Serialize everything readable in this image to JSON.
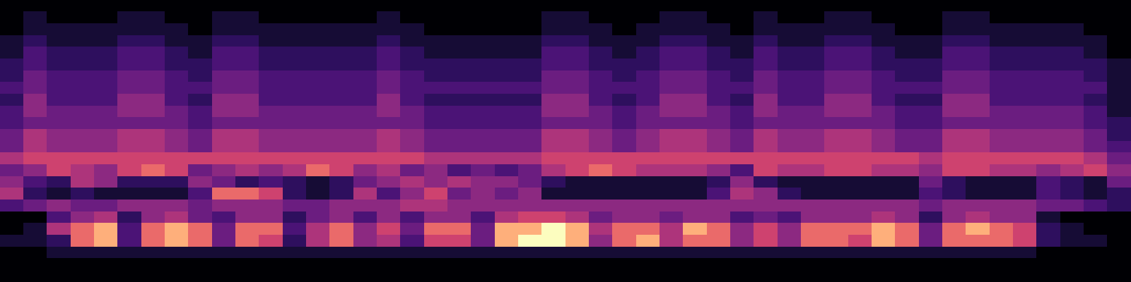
{
  "chart_data": {
    "type": "heatmap",
    "tick_labels": false,
    "cells": [
      [
        0,
        0,
        0,
        0,
        0,
        0,
        0,
        0,
        0,
        0,
        0,
        0,
        0,
        0,
        0,
        0,
        0,
        0,
        0,
        0,
        0,
        0,
        0,
        0,
        0,
        0,
        0,
        0,
        0,
        0,
        0,
        0,
        0,
        0,
        0,
        0,
        0,
        0,
        0,
        0,
        0,
        0,
        0,
        0,
        0,
        0,
        0,
        0
      ],
      [
        0,
        1,
        0,
        0,
        0,
        1,
        1,
        0,
        0,
        1,
        1,
        0,
        0,
        0,
        0,
        0,
        1,
        0,
        0,
        0,
        0,
        0,
        0,
        1,
        1,
        0,
        0,
        0,
        1,
        1,
        0,
        0,
        1,
        0,
        0,
        1,
        1,
        0,
        0,
        0,
        1,
        1,
        0,
        0,
        0,
        0,
        0,
        0
      ],
      [
        0,
        1,
        1,
        1,
        1,
        1,
        1,
        1,
        0,
        1,
        1,
        1,
        1,
        1,
        1,
        1,
        1,
        1,
        0,
        0,
        0,
        0,
        0,
        1,
        1,
        1,
        0,
        1,
        1,
        1,
        1,
        0,
        1,
        1,
        1,
        1,
        1,
        1,
        0,
        0,
        1,
        1,
        1,
        1,
        1,
        1,
        0,
        0
      ],
      [
        1,
        2,
        1,
        1,
        1,
        2,
        2,
        1,
        1,
        2,
        2,
        1,
        1,
        1,
        1,
        1,
        2,
        1,
        1,
        1,
        1,
        1,
        1,
        2,
        2,
        1,
        1,
        1,
        2,
        2,
        1,
        1,
        2,
        1,
        1,
        2,
        2,
        1,
        1,
        1,
        2,
        2,
        1,
        1,
        1,
        1,
        1,
        0
      ],
      [
        1,
        3,
        2,
        2,
        2,
        3,
        3,
        2,
        1,
        3,
        3,
        2,
        2,
        2,
        2,
        2,
        3,
        2,
        1,
        1,
        1,
        1,
        1,
        3,
        3,
        2,
        1,
        2,
        3,
        3,
        2,
        1,
        3,
        2,
        2,
        3,
        3,
        2,
        1,
        1,
        3,
        3,
        2,
        2,
        2,
        2,
        1,
        0
      ],
      [
        2,
        3,
        2,
        2,
        2,
        3,
        3,
        2,
        2,
        3,
        3,
        2,
        2,
        2,
        2,
        2,
        3,
        2,
        2,
        2,
        2,
        2,
        2,
        3,
        3,
        2,
        2,
        2,
        3,
        3,
        2,
        2,
        3,
        2,
        2,
        3,
        3,
        2,
        2,
        2,
        3,
        3,
        2,
        2,
        2,
        2,
        2,
        1
      ],
      [
        2,
        4,
        3,
        3,
        3,
        4,
        4,
        3,
        2,
        4,
        4,
        3,
        3,
        3,
        3,
        3,
        4,
        3,
        2,
        2,
        2,
        2,
        2,
        4,
        4,
        3,
        2,
        3,
        4,
        4,
        3,
        2,
        4,
        3,
        3,
        4,
        4,
        3,
        2,
        2,
        4,
        4,
        3,
        3,
        3,
        3,
        2,
        1
      ],
      [
        3,
        4,
        3,
        3,
        3,
        4,
        4,
        3,
        3,
        4,
        4,
        3,
        3,
        3,
        3,
        3,
        4,
        3,
        3,
        3,
        3,
        3,
        3,
        4,
        4,
        3,
        3,
        3,
        4,
        4,
        3,
        3,
        4,
        3,
        3,
        4,
        4,
        3,
        3,
        3,
        4,
        4,
        3,
        3,
        3,
        3,
        3,
        1
      ],
      [
        2,
        5,
        3,
        3,
        3,
        5,
        5,
        3,
        2,
        5,
        5,
        3,
        3,
        3,
        3,
        3,
        5,
        3,
        2,
        2,
        2,
        2,
        2,
        5,
        5,
        3,
        2,
        3,
        5,
        5,
        3,
        2,
        5,
        3,
        3,
        5,
        5,
        3,
        2,
        2,
        5,
        5,
        3,
        3,
        3,
        3,
        2,
        1
      ],
      [
        3,
        5,
        4,
        4,
        4,
        5,
        5,
        4,
        3,
        5,
        5,
        4,
        4,
        4,
        4,
        4,
        5,
        4,
        3,
        3,
        3,
        3,
        3,
        5,
        5,
        4,
        3,
        4,
        5,
        5,
        4,
        3,
        5,
        4,
        4,
        5,
        5,
        4,
        3,
        3,
        5,
        5,
        4,
        4,
        4,
        4,
        3,
        1
      ],
      [
        3,
        4,
        4,
        4,
        4,
        4,
        4,
        4,
        3,
        4,
        4,
        4,
        4,
        4,
        4,
        4,
        4,
        4,
        3,
        3,
        3,
        3,
        3,
        4,
        4,
        4,
        3,
        4,
        4,
        4,
        4,
        3,
        4,
        4,
        4,
        4,
        4,
        4,
        3,
        3,
        4,
        4,
        4,
        4,
        4,
        4,
        3,
        2
      ],
      [
        4,
        6,
        5,
        5,
        5,
        6,
        6,
        5,
        4,
        6,
        6,
        5,
        5,
        5,
        5,
        5,
        6,
        5,
        4,
        4,
        4,
        4,
        4,
        6,
        6,
        5,
        4,
        5,
        6,
        6,
        5,
        4,
        6,
        5,
        5,
        6,
        6,
        5,
        4,
        4,
        6,
        6,
        5,
        5,
        5,
        5,
        4,
        2
      ],
      [
        4,
        6,
        5,
        5,
        5,
        6,
        6,
        5,
        4,
        6,
        6,
        5,
        5,
        5,
        5,
        5,
        6,
        5,
        4,
        4,
        4,
        4,
        4,
        6,
        6,
        5,
        4,
        5,
        6,
        6,
        5,
        4,
        6,
        5,
        5,
        6,
        6,
        5,
        4,
        4,
        6,
        6,
        5,
        5,
        5,
        5,
        4,
        3
      ],
      [
        6,
        7,
        7,
        7,
        7,
        7,
        7,
        7,
        7,
        7,
        7,
        7,
        7,
        7,
        7,
        7,
        7,
        7,
        6,
        6,
        6,
        6,
        6,
        7,
        7,
        7,
        7,
        7,
        7,
        7,
        7,
        7,
        7,
        7,
        7,
        7,
        7,
        7,
        7,
        6,
        7,
        7,
        7,
        7,
        7,
        7,
        6,
        4
      ],
      [
        4,
        5,
        7,
        6,
        5,
        7,
        8,
        7,
        4,
        5,
        6,
        5,
        6,
        8,
        7,
        5,
        6,
        4,
        5,
        3,
        4,
        3,
        4,
        6,
        7,
        8,
        7,
        6,
        6,
        6,
        5,
        3,
        7,
        6,
        6,
        7,
        7,
        6,
        6,
        5,
        7,
        7,
        6,
        6,
        5,
        6,
        7,
        5
      ],
      [
        5,
        3,
        2,
        6,
        5,
        2,
        2,
        2,
        5,
        4,
        2,
        3,
        2,
        1,
        2,
        4,
        5,
        6,
        5,
        6,
        5,
        5,
        4,
        2,
        1,
        1,
        1,
        1,
        1,
        1,
        2,
        5,
        2,
        1,
        1,
        1,
        1,
        1,
        1,
        4,
        2,
        1,
        1,
        1,
        3,
        2,
        1,
        4
      ],
      [
        6,
        2,
        1,
        2,
        1,
        1,
        1,
        1,
        3,
        8,
        8,
        7,
        2,
        1,
        2,
        6,
        3,
        5,
        7,
        4,
        5,
        4,
        5,
        1,
        1,
        1,
        1,
        1,
        1,
        1,
        3,
        6,
        5,
        2,
        1,
        1,
        1,
        1,
        1,
        3,
        2,
        1,
        1,
        1,
        3,
        2,
        1,
        2
      ],
      [
        3,
        4,
        5,
        4,
        4,
        5,
        5,
        5,
        4,
        5,
        5,
        5,
        4,
        4,
        5,
        5,
        5,
        6,
        6,
        5,
        5,
        5,
        5,
        5,
        5,
        5,
        5,
        5,
        5,
        5,
        5,
        5,
        5,
        5,
        5,
        5,
        5,
        5,
        5,
        4,
        5,
        5,
        5,
        5,
        4,
        4,
        3,
        2
      ],
      [
        0,
        0,
        3,
        5,
        6,
        2,
        5,
        6,
        4,
        3,
        5,
        5,
        2,
        4,
        5,
        3,
        5,
        3,
        5,
        5,
        3,
        6,
        7,
        7,
        6,
        4,
        5,
        5,
        4,
        5,
        5,
        3,
        4,
        3,
        5,
        5,
        5,
        6,
        5,
        2,
        5,
        6,
        5,
        5,
        1,
        0,
        0,
        0
      ],
      [
        0,
        1,
        6,
        8,
        9,
        3,
        8,
        9,
        8,
        4,
        8,
        8,
        3,
        6,
        8,
        5,
        7,
        4,
        8,
        8,
        4,
        9,
        9,
        10,
        9,
        6,
        8,
        8,
        6,
        9,
        8,
        5,
        7,
        5,
        8,
        8,
        8,
        9,
        8,
        4,
        8,
        9,
        8,
        7,
        2,
        1,
        0,
        0
      ],
      [
        1,
        1,
        2,
        8,
        9,
        3,
        8,
        9,
        8,
        4,
        8,
        7,
        2,
        6,
        8,
        5,
        6,
        3,
        7,
        7,
        4,
        9,
        10,
        10,
        9,
        5,
        8,
        9,
        6,
        8,
        8,
        5,
        7,
        5,
        8,
        8,
        7,
        9,
        8,
        4,
        8,
        8,
        8,
        7,
        2,
        1,
        1,
        0
      ],
      [
        0,
        0,
        1,
        1,
        1,
        1,
        1,
        1,
        1,
        1,
        1,
        1,
        1,
        1,
        1,
        1,
        1,
        1,
        1,
        1,
        1,
        1,
        1,
        1,
        1,
        1,
        1,
        1,
        1,
        1,
        1,
        1,
        1,
        1,
        1,
        1,
        1,
        1,
        1,
        1,
        1,
        1,
        1,
        1,
        0,
        0,
        0,
        0
      ],
      [
        0,
        0,
        0,
        0,
        0,
        0,
        0,
        0,
        0,
        0,
        0,
        0,
        0,
        0,
        0,
        0,
        0,
        0,
        0,
        0,
        0,
        0,
        0,
        0,
        0,
        0,
        0,
        0,
        0,
        0,
        0,
        0,
        0,
        0,
        0,
        0,
        0,
        0,
        0,
        0,
        0,
        0,
        0,
        0,
        0,
        0,
        0,
        0
      ],
      [
        0,
        0,
        0,
        0,
        0,
        0,
        0,
        0,
        0,
        0,
        0,
        0,
        0,
        0,
        0,
        0,
        0,
        0,
        0,
        0,
        0,
        0,
        0,
        0,
        0,
        0,
        0,
        0,
        0,
        0,
        0,
        0,
        0,
        0,
        0,
        0,
        0,
        0,
        0,
        0,
        0,
        0,
        0,
        0,
        0,
        0,
        0,
        0
      ]
    ]
  }
}
